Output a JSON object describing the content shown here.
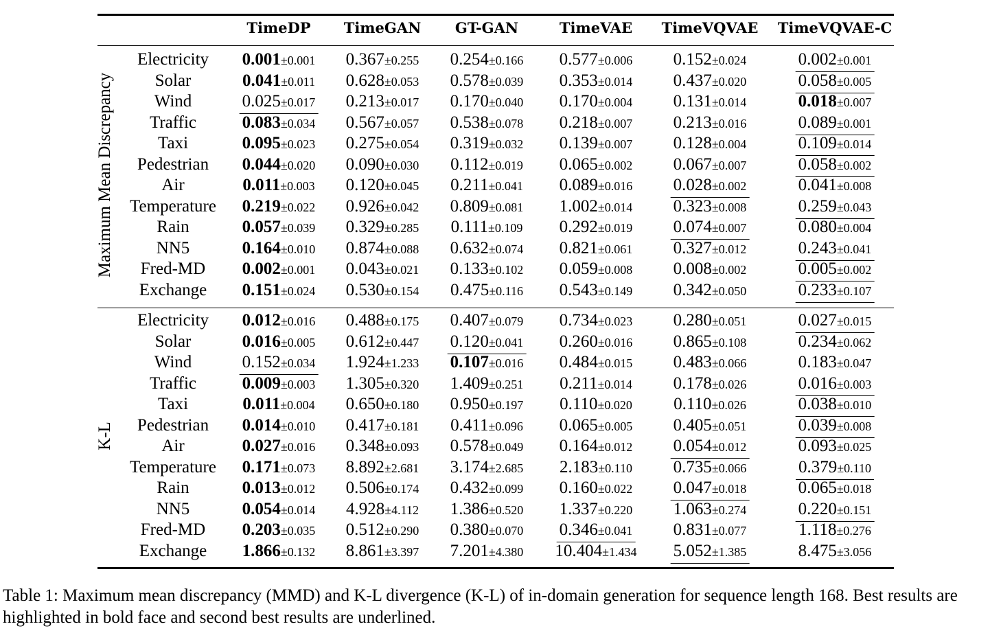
{
  "columns": [
    "TimeDP",
    "TimeGAN",
    "GT-GAN",
    "TimeVAE",
    "TimeVQVAE",
    "TimeVQVAE-C"
  ],
  "groups": [
    {
      "label": "Maximum Mean Discrepancy",
      "rows": [
        {
          "dataset": "Electricity",
          "cells": [
            {
              "m": "0.001",
              "s": "±0.001",
              "fmt": "best"
            },
            {
              "m": "0.367",
              "s": "±0.255",
              "fmt": ""
            },
            {
              "m": "0.254",
              "s": "±0.166",
              "fmt": ""
            },
            {
              "m": "0.577",
              "s": "±0.006",
              "fmt": ""
            },
            {
              "m": "0.152",
              "s": "±0.024",
              "fmt": ""
            },
            {
              "m": "0.002",
              "s": "±0.001",
              "fmt": "second"
            }
          ]
        },
        {
          "dataset": "Solar",
          "cells": [
            {
              "m": "0.041",
              "s": "±0.011",
              "fmt": "best"
            },
            {
              "m": "0.628",
              "s": "±0.053",
              "fmt": ""
            },
            {
              "m": "0.578",
              "s": "±0.039",
              "fmt": ""
            },
            {
              "m": "0.353",
              "s": "±0.014",
              "fmt": ""
            },
            {
              "m": "0.437",
              "s": "±0.020",
              "fmt": ""
            },
            {
              "m": "0.058",
              "s": "±0.005",
              "fmt": "second"
            }
          ]
        },
        {
          "dataset": "Wind",
          "cells": [
            {
              "m": "0.025",
              "s": "±0.017",
              "fmt": "second"
            },
            {
              "m": "0.213",
              "s": "±0.017",
              "fmt": ""
            },
            {
              "m": "0.170",
              "s": "±0.040",
              "fmt": ""
            },
            {
              "m": "0.170",
              "s": "±0.004",
              "fmt": ""
            },
            {
              "m": "0.131",
              "s": "±0.014",
              "fmt": ""
            },
            {
              "m": "0.018",
              "s": "±0.007",
              "fmt": "best"
            }
          ]
        },
        {
          "dataset": "Traffic",
          "cells": [
            {
              "m": "0.083",
              "s": "±0.034",
              "fmt": "best"
            },
            {
              "m": "0.567",
              "s": "±0.057",
              "fmt": ""
            },
            {
              "m": "0.538",
              "s": "±0.078",
              "fmt": ""
            },
            {
              "m": "0.218",
              "s": "±0.007",
              "fmt": ""
            },
            {
              "m": "0.213",
              "s": "±0.016",
              "fmt": ""
            },
            {
              "m": "0.089",
              "s": "±0.001",
              "fmt": "second"
            }
          ]
        },
        {
          "dataset": "Taxi",
          "cells": [
            {
              "m": "0.095",
              "s": "±0.023",
              "fmt": "best"
            },
            {
              "m": "0.275",
              "s": "±0.054",
              "fmt": ""
            },
            {
              "m": "0.319",
              "s": "±0.032",
              "fmt": ""
            },
            {
              "m": "0.139",
              "s": "±0.007",
              "fmt": ""
            },
            {
              "m": "0.128",
              "s": "±0.004",
              "fmt": ""
            },
            {
              "m": "0.109",
              "s": "±0.014",
              "fmt": "second"
            }
          ]
        },
        {
          "dataset": "Pedestrian",
          "cells": [
            {
              "m": "0.044",
              "s": "±0.020",
              "fmt": "best"
            },
            {
              "m": "0.090",
              "s": "±0.030",
              "fmt": ""
            },
            {
              "m": "0.112",
              "s": "±0.019",
              "fmt": ""
            },
            {
              "m": "0.065",
              "s": "±0.002",
              "fmt": ""
            },
            {
              "m": "0.067",
              "s": "±0.007",
              "fmt": ""
            },
            {
              "m": "0.058",
              "s": "±0.002",
              "fmt": "second"
            }
          ]
        },
        {
          "dataset": "Air",
          "cells": [
            {
              "m": "0.011",
              "s": "±0.003",
              "fmt": "best"
            },
            {
              "m": "0.120",
              "s": "±0.045",
              "fmt": ""
            },
            {
              "m": "0.211",
              "s": "±0.041",
              "fmt": ""
            },
            {
              "m": "0.089",
              "s": "±0.016",
              "fmt": ""
            },
            {
              "m": "0.028",
              "s": "±0.002",
              "fmt": "second"
            },
            {
              "m": "0.041",
              "s": "±0.008",
              "fmt": ""
            }
          ]
        },
        {
          "dataset": "Temperature",
          "cells": [
            {
              "m": "0.219",
              "s": "±0.022",
              "fmt": "best"
            },
            {
              "m": "0.926",
              "s": "±0.042",
              "fmt": ""
            },
            {
              "m": "0.809",
              "s": "±0.081",
              "fmt": ""
            },
            {
              "m": "1.002",
              "s": "±0.014",
              "fmt": ""
            },
            {
              "m": "0.323",
              "s": "±0.008",
              "fmt": ""
            },
            {
              "m": "0.259",
              "s": "±0.043",
              "fmt": "second"
            }
          ]
        },
        {
          "dataset": "Rain",
          "cells": [
            {
              "m": "0.057",
              "s": "±0.039",
              "fmt": "best"
            },
            {
              "m": "0.329",
              "s": "±0.285",
              "fmt": ""
            },
            {
              "m": "0.111",
              "s": "±0.109",
              "fmt": ""
            },
            {
              "m": "0.292",
              "s": "±0.019",
              "fmt": ""
            },
            {
              "m": "0.074",
              "s": "±0.007",
              "fmt": "second"
            },
            {
              "m": "0.080",
              "s": "±0.004",
              "fmt": ""
            }
          ]
        },
        {
          "dataset": "NN5",
          "cells": [
            {
              "m": "0.164",
              "s": "±0.010",
              "fmt": "best"
            },
            {
              "m": "0.874",
              "s": "±0.088",
              "fmt": ""
            },
            {
              "m": "0.632",
              "s": "±0.074",
              "fmt": ""
            },
            {
              "m": "0.821",
              "s": "±0.061",
              "fmt": ""
            },
            {
              "m": "0.327",
              "s": "±0.012",
              "fmt": ""
            },
            {
              "m": "0.243",
              "s": "±0.041",
              "fmt": "second"
            }
          ]
        },
        {
          "dataset": "Fred-MD",
          "cells": [
            {
              "m": "0.002",
              "s": "±0.001",
              "fmt": "best"
            },
            {
              "m": "0.043",
              "s": "±0.021",
              "fmt": ""
            },
            {
              "m": "0.133",
              "s": "±0.102",
              "fmt": ""
            },
            {
              "m": "0.059",
              "s": "±0.008",
              "fmt": ""
            },
            {
              "m": "0.008",
              "s": "±0.002",
              "fmt": ""
            },
            {
              "m": "0.005",
              "s": "±0.002",
              "fmt": "second"
            }
          ]
        },
        {
          "dataset": "Exchange",
          "cells": [
            {
              "m": "0.151",
              "s": "±0.024",
              "fmt": "best"
            },
            {
              "m": "0.530",
              "s": "±0.154",
              "fmt": ""
            },
            {
              "m": "0.475",
              "s": "±0.116",
              "fmt": ""
            },
            {
              "m": "0.543",
              "s": "±0.149",
              "fmt": ""
            },
            {
              "m": "0.342",
              "s": "±0.050",
              "fmt": ""
            },
            {
              "m": "0.233",
              "s": "±0.107",
              "fmt": "second"
            }
          ]
        }
      ]
    },
    {
      "label": "K-L",
      "rows": [
        {
          "dataset": "Electricity",
          "cells": [
            {
              "m": "0.012",
              "s": "±0.016",
              "fmt": "best"
            },
            {
              "m": "0.488",
              "s": "±0.175",
              "fmt": ""
            },
            {
              "m": "0.407",
              "s": "±0.079",
              "fmt": ""
            },
            {
              "m": "0.734",
              "s": "±0.023",
              "fmt": ""
            },
            {
              "m": "0.280",
              "s": "±0.051",
              "fmt": ""
            },
            {
              "m": "0.027",
              "s": "±0.015",
              "fmt": "second"
            }
          ]
        },
        {
          "dataset": "Solar",
          "cells": [
            {
              "m": "0.016",
              "s": "±0.005",
              "fmt": "best"
            },
            {
              "m": "0.612",
              "s": "±0.447",
              "fmt": ""
            },
            {
              "m": "0.120",
              "s": "±0.041",
              "fmt": "second"
            },
            {
              "m": "0.260",
              "s": "±0.016",
              "fmt": ""
            },
            {
              "m": "0.865",
              "s": "±0.108",
              "fmt": ""
            },
            {
              "m": "0.234",
              "s": "±0.062",
              "fmt": ""
            }
          ]
        },
        {
          "dataset": "Wind",
          "cells": [
            {
              "m": "0.152",
              "s": "±0.034",
              "fmt": "second"
            },
            {
              "m": "1.924",
              "s": "±1.233",
              "fmt": ""
            },
            {
              "m": "0.107",
              "s": "±0.016",
              "fmt": "best"
            },
            {
              "m": "0.484",
              "s": "±0.015",
              "fmt": ""
            },
            {
              "m": "0.483",
              "s": "±0.066",
              "fmt": ""
            },
            {
              "m": "0.183",
              "s": "±0.047",
              "fmt": ""
            }
          ]
        },
        {
          "dataset": "Traffic",
          "cells": [
            {
              "m": "0.009",
              "s": "±0.003",
              "fmt": "best"
            },
            {
              "m": "1.305",
              "s": "±0.320",
              "fmt": ""
            },
            {
              "m": "1.409",
              "s": "±0.251",
              "fmt": ""
            },
            {
              "m": "0.211",
              "s": "±0.014",
              "fmt": ""
            },
            {
              "m": "0.178",
              "s": "±0.026",
              "fmt": ""
            },
            {
              "m": "0.016",
              "s": "±0.003",
              "fmt": "second"
            }
          ]
        },
        {
          "dataset": "Taxi",
          "cells": [
            {
              "m": "0.011",
              "s": "±0.004",
              "fmt": "best"
            },
            {
              "m": "0.650",
              "s": "±0.180",
              "fmt": ""
            },
            {
              "m": "0.950",
              "s": "±0.197",
              "fmt": ""
            },
            {
              "m": "0.110",
              "s": "±0.020",
              "fmt": ""
            },
            {
              "m": "0.110",
              "s": "±0.026",
              "fmt": ""
            },
            {
              "m": "0.038",
              "s": "±0.010",
              "fmt": "second"
            }
          ]
        },
        {
          "dataset": "Pedestrian",
          "cells": [
            {
              "m": "0.014",
              "s": "±0.010",
              "fmt": "best"
            },
            {
              "m": "0.417",
              "s": "±0.181",
              "fmt": ""
            },
            {
              "m": "0.411",
              "s": "±0.096",
              "fmt": ""
            },
            {
              "m": "0.065",
              "s": "±0.005",
              "fmt": ""
            },
            {
              "m": "0.405",
              "s": "±0.051",
              "fmt": ""
            },
            {
              "m": "0.039",
              "s": "±0.008",
              "fmt": "second"
            }
          ]
        },
        {
          "dataset": "Air",
          "cells": [
            {
              "m": "0.027",
              "s": "±0.016",
              "fmt": "best"
            },
            {
              "m": "0.348",
              "s": "±0.093",
              "fmt": ""
            },
            {
              "m": "0.578",
              "s": "±0.049",
              "fmt": ""
            },
            {
              "m": "0.164",
              "s": "±0.012",
              "fmt": ""
            },
            {
              "m": "0.054",
              "s": "±0.012",
              "fmt": "second"
            },
            {
              "m": "0.093",
              "s": "±0.025",
              "fmt": ""
            }
          ]
        },
        {
          "dataset": "Temperature",
          "cells": [
            {
              "m": "0.171",
              "s": "±0.073",
              "fmt": "best"
            },
            {
              "m": "8.892",
              "s": "±2.681",
              "fmt": ""
            },
            {
              "m": "3.174",
              "s": "±2.685",
              "fmt": ""
            },
            {
              "m": "2.183",
              "s": "±0.110",
              "fmt": ""
            },
            {
              "m": "0.735",
              "s": "±0.066",
              "fmt": ""
            },
            {
              "m": "0.379",
              "s": "±0.110",
              "fmt": "second"
            }
          ]
        },
        {
          "dataset": "Rain",
          "cells": [
            {
              "m": "0.013",
              "s": "±0.012",
              "fmt": "best"
            },
            {
              "m": "0.506",
              "s": "±0.174",
              "fmt": ""
            },
            {
              "m": "0.432",
              "s": "±0.099",
              "fmt": ""
            },
            {
              "m": "0.160",
              "s": "±0.022",
              "fmt": ""
            },
            {
              "m": "0.047",
              "s": "±0.018",
              "fmt": "second"
            },
            {
              "m": "0.065",
              "s": "±0.018",
              "fmt": ""
            }
          ]
        },
        {
          "dataset": "NN5",
          "cells": [
            {
              "m": "0.054",
              "s": "±0.014",
              "fmt": "best"
            },
            {
              "m": "4.928",
              "s": "±4.112",
              "fmt": ""
            },
            {
              "m": "1.386",
              "s": "±0.520",
              "fmt": ""
            },
            {
              "m": "1.337",
              "s": "±0.220",
              "fmt": ""
            },
            {
              "m": "1.063",
              "s": "±0.274",
              "fmt": ""
            },
            {
              "m": "0.220",
              "s": "±0.151",
              "fmt": "second"
            }
          ]
        },
        {
          "dataset": "Fred-MD",
          "cells": [
            {
              "m": "0.203",
              "s": "±0.035",
              "fmt": "best"
            },
            {
              "m": "0.512",
              "s": "±0.290",
              "fmt": ""
            },
            {
              "m": "0.380",
              "s": "±0.070",
              "fmt": ""
            },
            {
              "m": "0.346",
              "s": "±0.041",
              "fmt": "second"
            },
            {
              "m": "0.831",
              "s": "±0.077",
              "fmt": ""
            },
            {
              "m": "1.118",
              "s": "±0.276",
              "fmt": ""
            }
          ]
        },
        {
          "dataset": "Exchange",
          "cells": [
            {
              "m": "1.866",
              "s": "±0.132",
              "fmt": "best"
            },
            {
              "m": "8.861",
              "s": "±3.397",
              "fmt": ""
            },
            {
              "m": "7.201",
              "s": "±4.380",
              "fmt": ""
            },
            {
              "m": "10.404",
              "s": "±1.434",
              "fmt": ""
            },
            {
              "m": "5.052",
              "s": "±1.385",
              "fmt": "second"
            },
            {
              "m": "8.475",
              "s": "±3.056",
              "fmt": ""
            }
          ]
        }
      ]
    }
  ],
  "caption": "Table 1: Maximum mean discrepancy (MMD) and K-L divergence (K-L) of in-domain generation for sequence length 168. Best results are highlighted in bold face and second best results are underlined."
}
